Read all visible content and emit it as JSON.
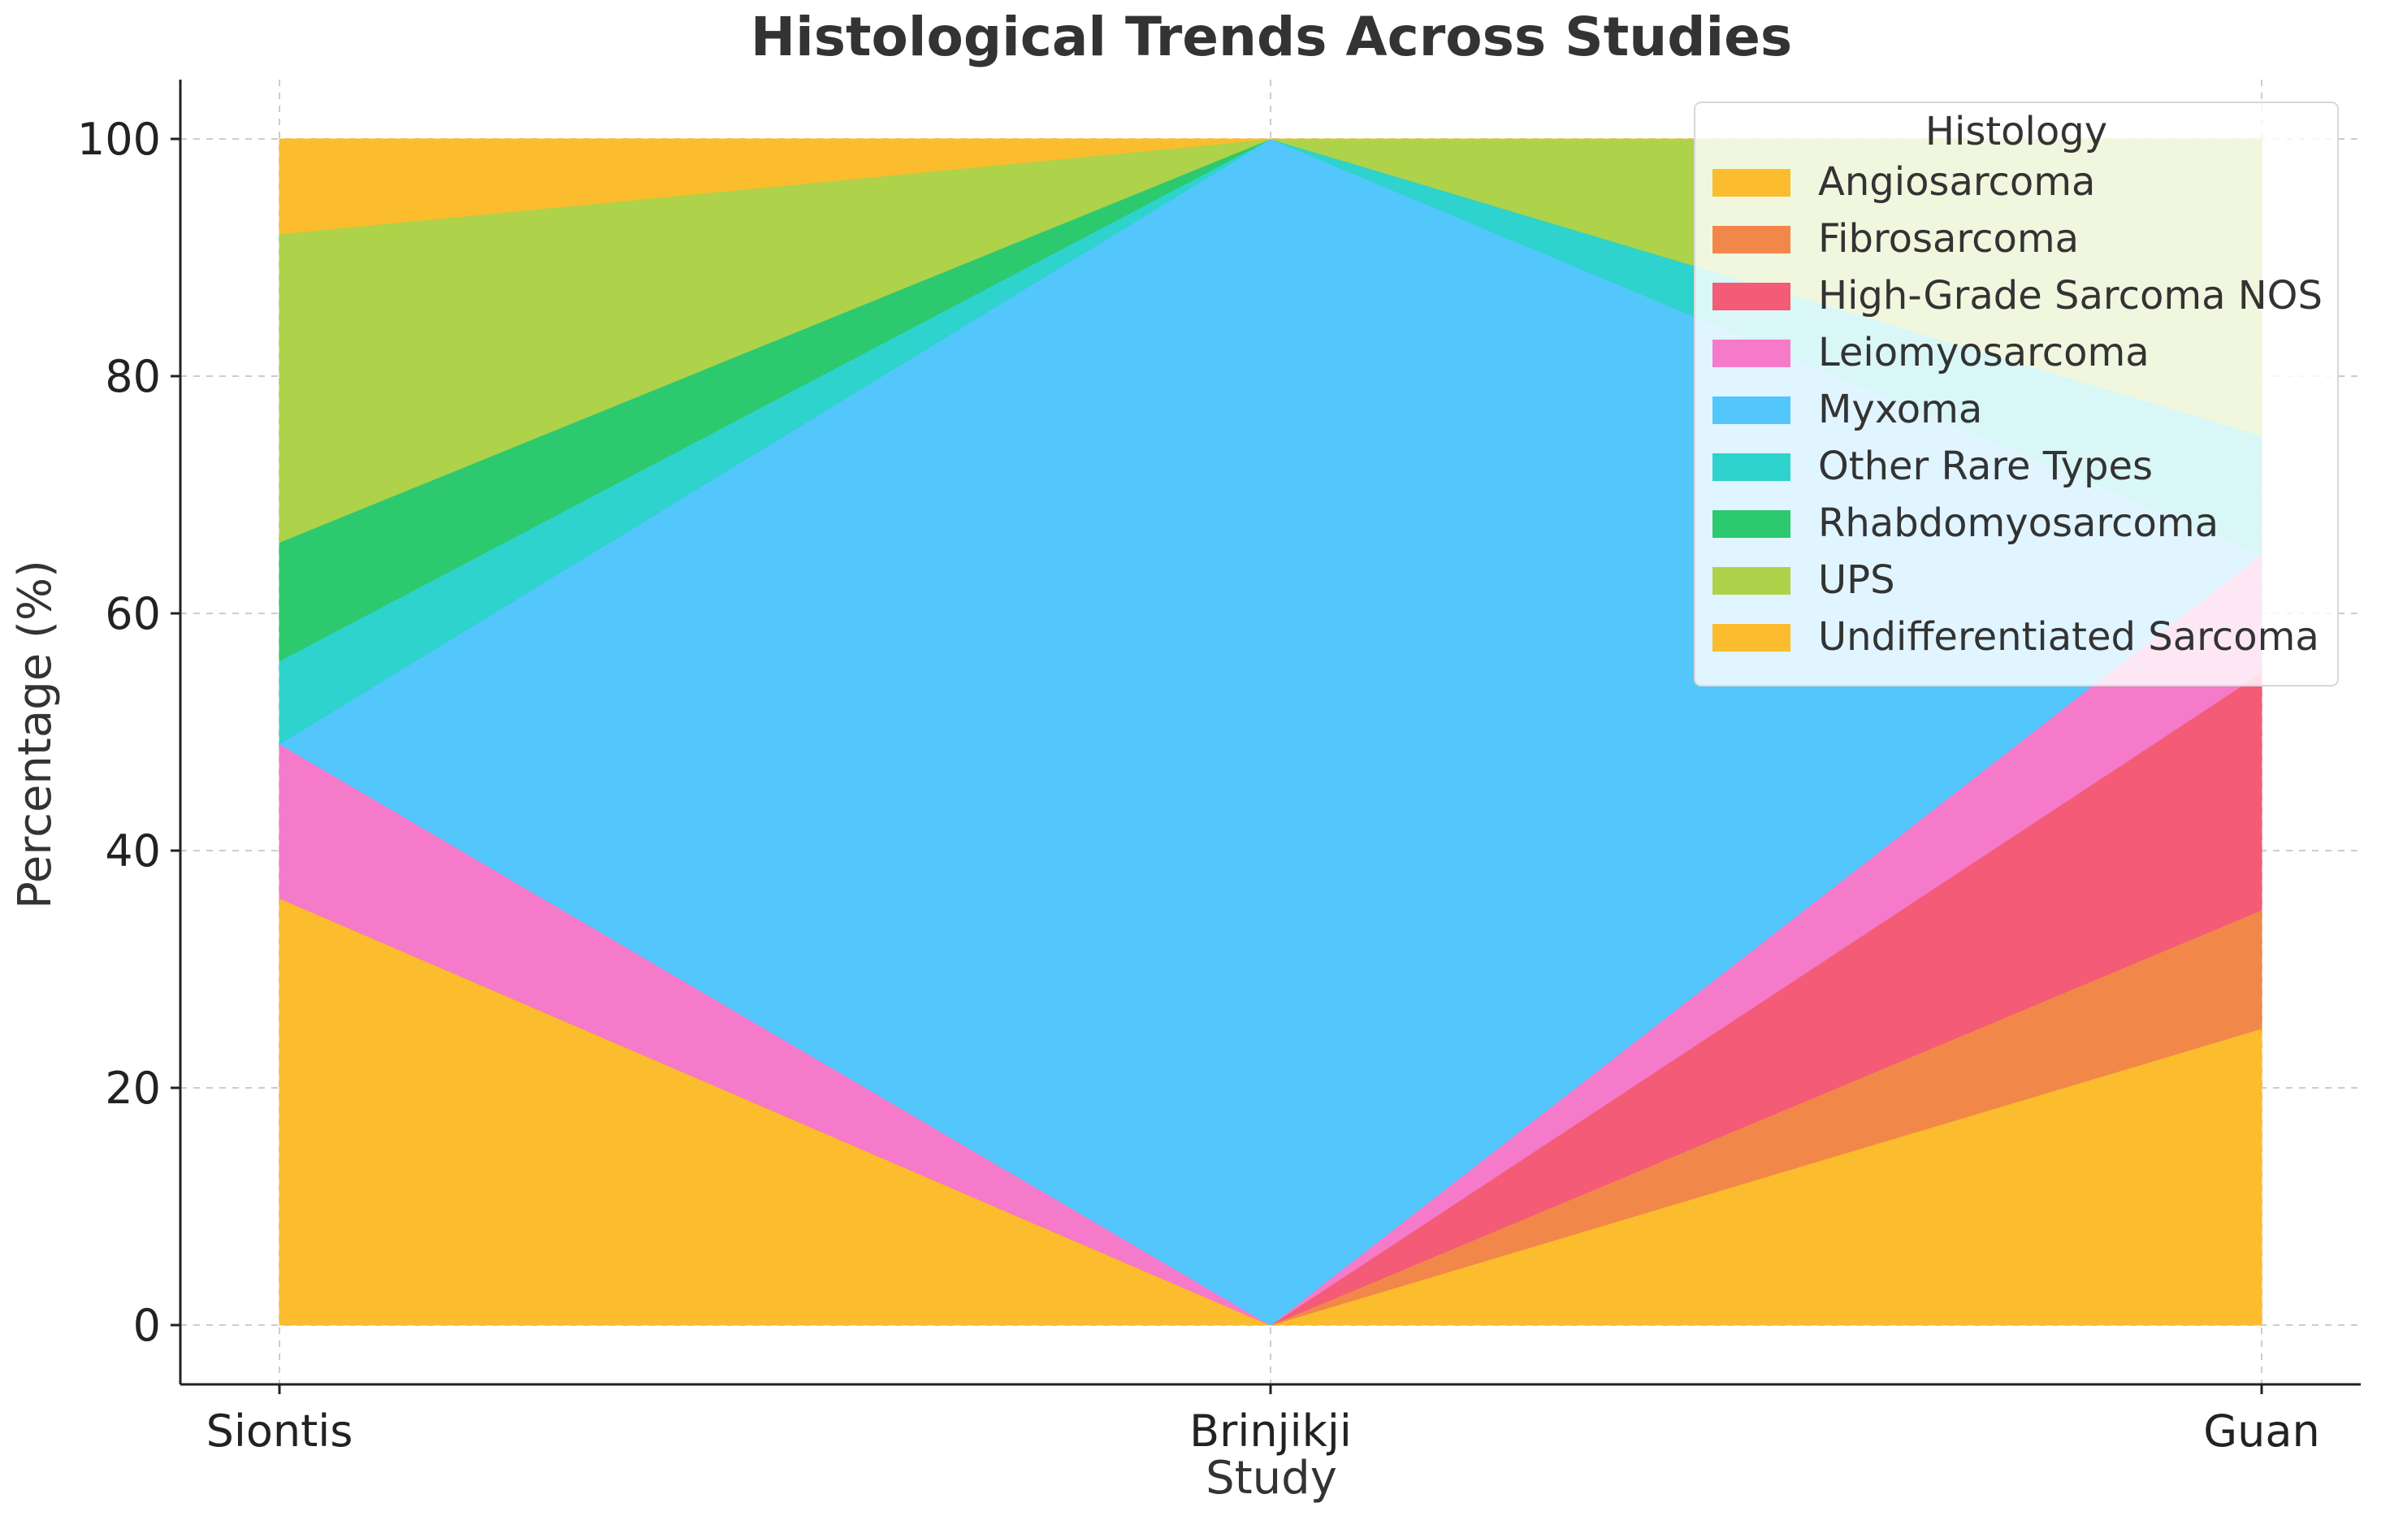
{
  "chart_data": {
    "type": "area",
    "stacked": true,
    "title": "Histological Trends Across Studies",
    "xlabel": "Study",
    "ylabel": "Percentage (%)",
    "categories": [
      "Siontis",
      "Brinjikji",
      "Guan"
    ],
    "ylim": [
      -5,
      105
    ],
    "yticks": [
      0,
      20,
      40,
      60,
      80,
      100
    ],
    "grid": true,
    "legend": {
      "title": "Histology",
      "placement": "top-right"
    },
    "series": [
      {
        "name": "Angiosarcoma",
        "color": "#FBBC2E",
        "values": [
          36,
          0,
          25
        ]
      },
      {
        "name": "Fibrosarcoma",
        "color": "#F2874A",
        "values": [
          0,
          0,
          10
        ]
      },
      {
        "name": "High-Grade Sarcoma NOS",
        "color": "#F35B77",
        "values": [
          0,
          0,
          20
        ]
      },
      {
        "name": "Leiomyosarcoma",
        "color": "#F57AC9",
        "values": [
          13,
          0,
          10
        ]
      },
      {
        "name": "Myxoma",
        "color": "#53C6FC",
        "values": [
          0,
          100,
          0
        ]
      },
      {
        "name": "Other Rare Types",
        "color": "#2DD3CC",
        "values": [
          7,
          0,
          10
        ]
      },
      {
        "name": "Rhabdomyosarcoma",
        "color": "#2DC96E",
        "values": [
          10,
          0,
          0
        ]
      },
      {
        "name": "UPS",
        "color": "#AED24A",
        "values": [
          26,
          0,
          25
        ]
      },
      {
        "name": "Undifferentiated Sarcoma",
        "color": "#FBBC2E",
        "values": [
          8,
          0,
          0
        ]
      }
    ]
  }
}
